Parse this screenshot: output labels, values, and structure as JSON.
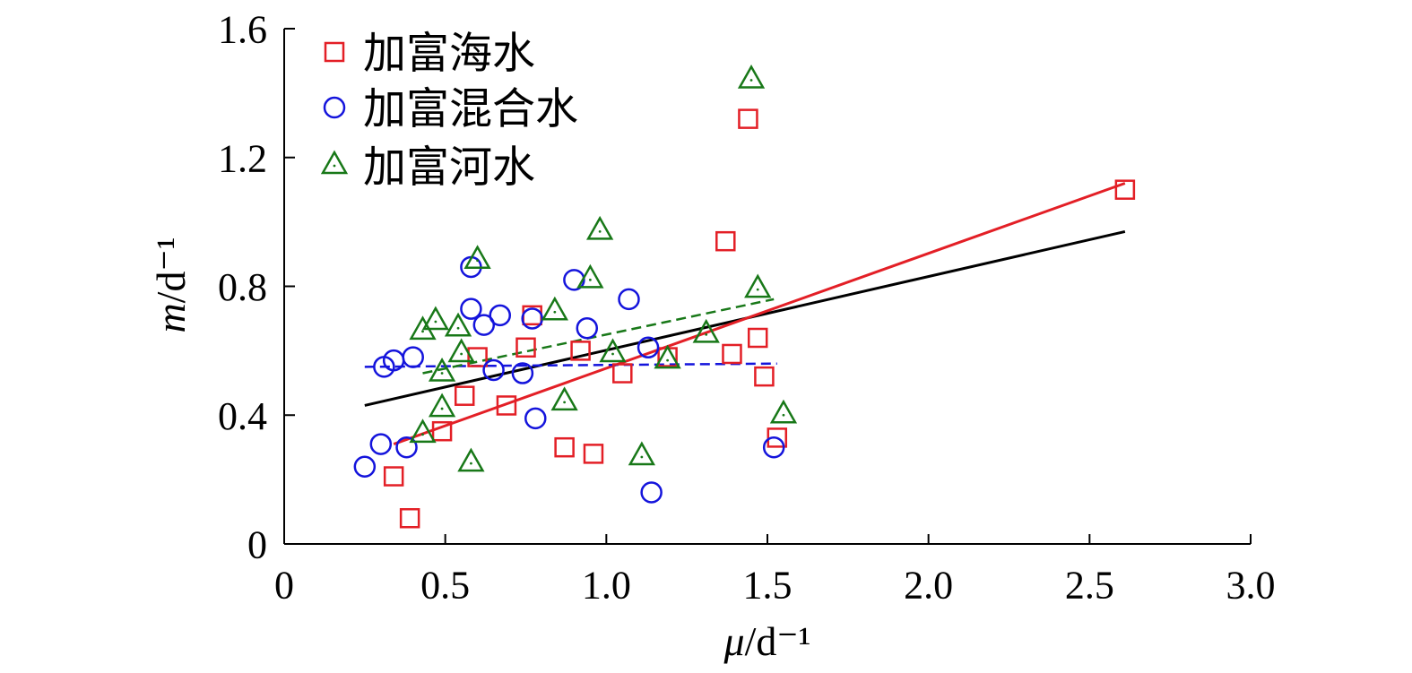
{
  "chart_data": {
    "type": "scatter",
    "xlabel": "μ/d⁻¹",
    "ylabel": "m/d⁻¹",
    "xlim": [
      0,
      3.0
    ],
    "ylim": [
      0,
      1.6
    ],
    "x_ticks": [
      0,
      0.5,
      1.0,
      1.5,
      2.0,
      2.5,
      3.0
    ],
    "x_tick_labels": [
      "0",
      "0.5",
      "1.0",
      "1.5",
      "2.0",
      "2.5",
      "3.0"
    ],
    "y_ticks": [
      0,
      0.4,
      0.8,
      1.2,
      1.6
    ],
    "y_tick_labels": [
      "0",
      "0.4",
      "0.8",
      "1.2",
      "1.6"
    ],
    "grid": false,
    "legend_position": "top-left",
    "series": [
      {
        "name": "加富海水",
        "marker": "square",
        "color": "#e31f26",
        "points": [
          [
            0.34,
            0.21
          ],
          [
            0.39,
            0.08
          ],
          [
            0.49,
            0.35
          ],
          [
            0.56,
            0.46
          ],
          [
            0.6,
            0.58
          ],
          [
            0.69,
            0.43
          ],
          [
            0.75,
            0.61
          ],
          [
            0.77,
            0.71
          ],
          [
            0.87,
            0.3
          ],
          [
            0.92,
            0.6
          ],
          [
            0.96,
            0.28
          ],
          [
            1.05,
            0.53
          ],
          [
            1.19,
            0.58
          ],
          [
            1.37,
            0.94
          ],
          [
            1.39,
            0.59
          ],
          [
            1.44,
            1.32
          ],
          [
            1.47,
            0.64
          ],
          [
            1.49,
            0.52
          ],
          [
            1.53,
            0.33
          ],
          [
            2.61,
            1.1
          ]
        ]
      },
      {
        "name": "加富混合水",
        "marker": "circle",
        "color": "#1414dc",
        "points": [
          [
            0.25,
            0.24
          ],
          [
            0.3,
            0.31
          ],
          [
            0.31,
            0.55
          ],
          [
            0.34,
            0.57
          ],
          [
            0.38,
            0.3
          ],
          [
            0.4,
            0.58
          ],
          [
            0.58,
            0.73
          ],
          [
            0.58,
            0.86
          ],
          [
            0.62,
            0.68
          ],
          [
            0.65,
            0.54
          ],
          [
            0.67,
            0.71
          ],
          [
            0.74,
            0.53
          ],
          [
            0.77,
            0.7
          ],
          [
            0.78,
            0.39
          ],
          [
            0.9,
            0.82
          ],
          [
            0.94,
            0.67
          ],
          [
            1.07,
            0.76
          ],
          [
            1.13,
            0.61
          ],
          [
            1.14,
            0.16
          ],
          [
            1.52,
            0.3
          ]
        ]
      },
      {
        "name": "加富河水",
        "marker": "triangle",
        "color": "#187818",
        "points": [
          [
            0.43,
            0.66
          ],
          [
            0.43,
            0.34
          ],
          [
            0.47,
            0.69
          ],
          [
            0.49,
            0.53
          ],
          [
            0.49,
            0.42
          ],
          [
            0.54,
            0.67
          ],
          [
            0.55,
            0.59
          ],
          [
            0.58,
            0.25
          ],
          [
            0.6,
            0.88
          ],
          [
            0.84,
            0.72
          ],
          [
            0.87,
            0.44
          ],
          [
            0.95,
            0.82
          ],
          [
            0.98,
            0.97
          ],
          [
            1.02,
            0.59
          ],
          [
            1.11,
            0.27
          ],
          [
            1.19,
            0.57
          ],
          [
            1.31,
            0.65
          ],
          [
            1.45,
            1.44
          ],
          [
            1.47,
            0.79
          ],
          [
            1.55,
            0.4
          ]
        ]
      }
    ],
    "fit_lines": [
      {
        "color": "#000000",
        "style": "solid",
        "x": [
          0.25,
          2.61
        ],
        "y": [
          0.43,
          0.97
        ]
      },
      {
        "color": "#e31f26",
        "style": "solid",
        "x": [
          0.34,
          2.61
        ],
        "y": [
          0.31,
          1.12
        ]
      },
      {
        "color": "#1414dc",
        "style": "dashed",
        "x": [
          0.25,
          1.53
        ],
        "y": [
          0.55,
          0.56
        ]
      },
      {
        "color": "#187818",
        "style": "dashed",
        "x": [
          0.43,
          1.52
        ],
        "y": [
          0.53,
          0.76
        ]
      }
    ]
  }
}
